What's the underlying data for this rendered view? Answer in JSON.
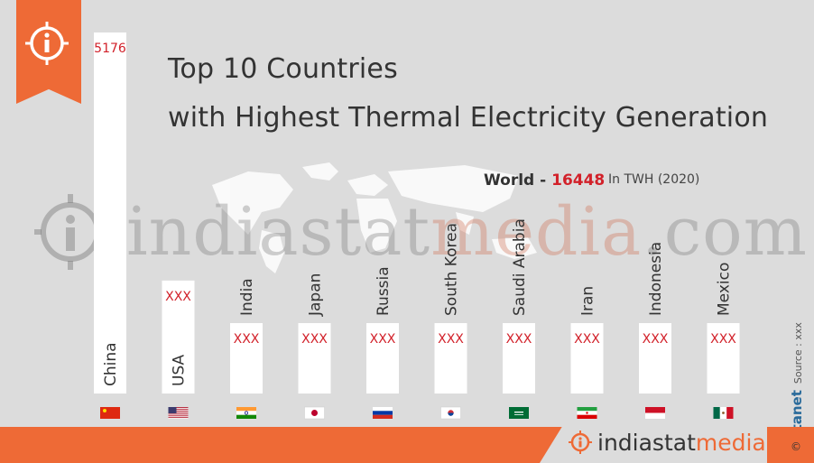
{
  "title": {
    "line1": "Top 10 Countries",
    "line2": "with Highest Thermal Electricity Generation"
  },
  "world": {
    "label": "World - ",
    "value": "16448"
  },
  "unit_note": "In TWH (2020)",
  "source": {
    "brand": "Datanet",
    "text": "Source : xxx"
  },
  "footer": {
    "brand_a": "indiastat",
    "brand_b": "media",
    "copyright": "©"
  },
  "watermark": {
    "text_a": "indiastat",
    "text_b": "media",
    "text_c": ".com"
  },
  "colors": {
    "accent": "#ee6a36",
    "value_red": "#d2212a",
    "bar": "#ffffff",
    "background": "#dcdcdc"
  },
  "chart_data": {
    "type": "bar",
    "title": "",
    "xlabel": "",
    "ylabel": "",
    "categories": [
      "China",
      "USA",
      "India",
      "Japan",
      "Russia",
      "South Korea",
      "Saudi Arabia",
      "Iran",
      "Indonesia",
      "Mexico"
    ],
    "value_labels": [
      "5176",
      "XXX",
      "XXX",
      "XXX",
      "XXX",
      "XXX",
      "XXX",
      "XXX",
      "XXX",
      "XXX"
    ],
    "values": [
      5176,
      1620,
      1000,
      730,
      690,
      560,
      540,
      510,
      480,
      470
    ],
    "flags": [
      "china-flag",
      "usa-flag",
      "india-flag",
      "japan-flag",
      "russia-flag",
      "south-korea-flag",
      "saudi-arabia-flag",
      "iran-flag",
      "indonesia-flag",
      "mexico-flag"
    ],
    "ylim": [
      0,
      5176
    ],
    "grid": false,
    "legend": "none"
  }
}
